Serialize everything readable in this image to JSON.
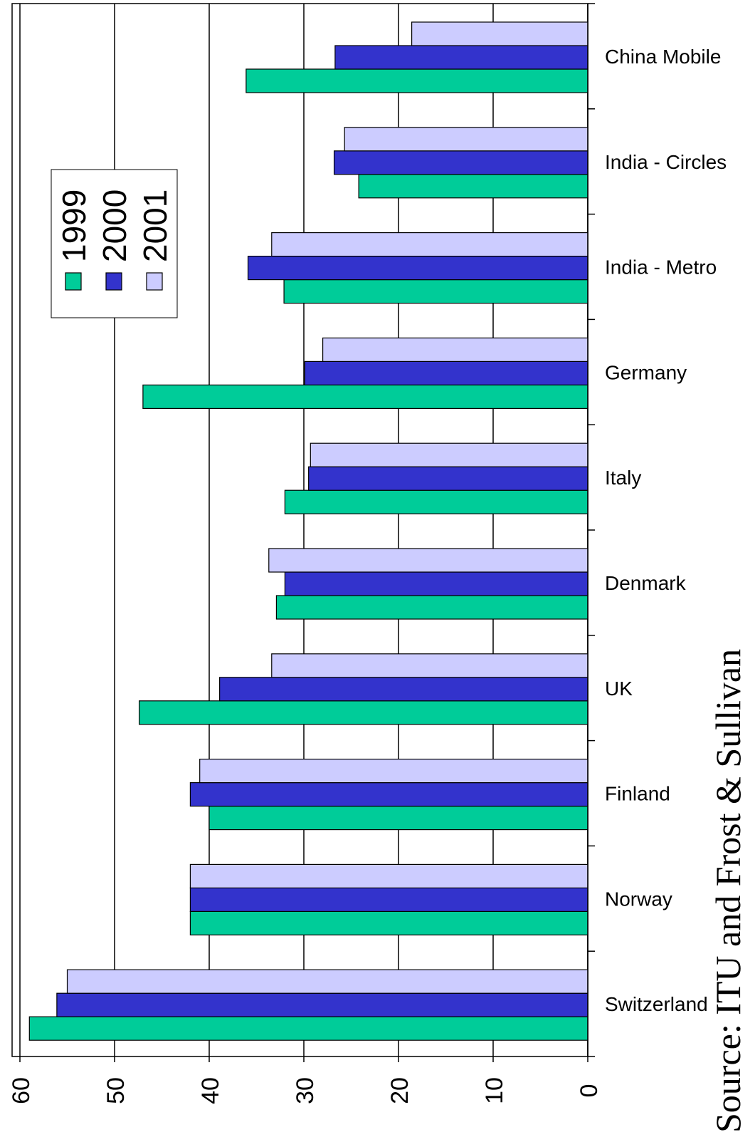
{
  "chart_data": {
    "type": "bar",
    "orientation": "horizontal",
    "categories": [
      "China Mobile",
      "India - Circles",
      "India - Metro",
      "Germany",
      "Italy",
      "Denmark",
      "UK",
      "Finland",
      "Norway",
      "Switzerland"
    ],
    "series": [
      {
        "name": "1999",
        "color": "#00cc99",
        "values": [
          36.1,
          24.2,
          32.1,
          47,
          32,
          32.9,
          47.4,
          40,
          42,
          59
        ]
      },
      {
        "name": "2000",
        "color": "#3333cc",
        "values": [
          26.7,
          26.8,
          35.9,
          29.9,
          29.5,
          32,
          38.9,
          42,
          42,
          56.1
        ]
      },
      {
        "name": "2001",
        "color": "#ccccff",
        "values": [
          18.6,
          25.7,
          33.4,
          28,
          29.3,
          33.7,
          33.4,
          41,
          42,
          55
        ]
      }
    ],
    "xlim": [
      0,
      60
    ],
    "xticks": [
      0,
      10,
      20,
      30,
      40,
      50,
      60
    ],
    "grid": true,
    "source": "Source: ITU and Frost & Sullivan"
  }
}
